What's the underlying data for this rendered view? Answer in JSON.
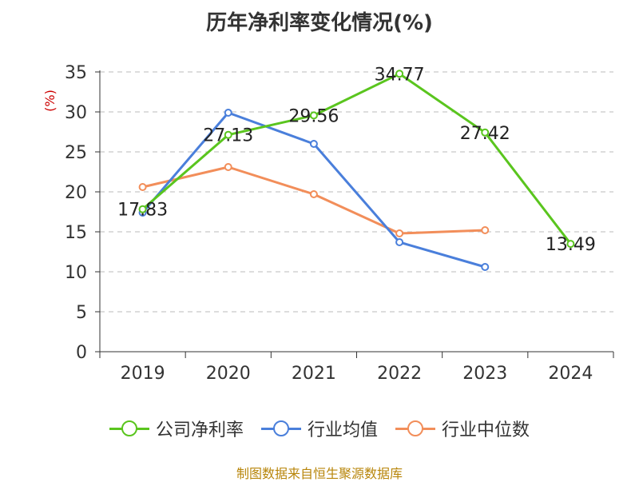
{
  "title": "历年净利率变化情况(%)",
  "source": "制图数据来自恒生聚源数据库",
  "chart_data": {
    "type": "line",
    "title": "历年净利率变化情况(%)",
    "ylabel": "(%)",
    "xlabel": "",
    "categories": [
      "2019",
      "2020",
      "2021",
      "2022",
      "2023",
      "2024"
    ],
    "ylim": [
      0,
      35
    ],
    "yticks": [
      0,
      5,
      10,
      15,
      20,
      25,
      30,
      35
    ],
    "grid": true,
    "legend_position": "bottom",
    "series": [
      {
        "name": "公司净利率",
        "color": "#5ac51e",
        "values": [
          17.83,
          27.13,
          29.56,
          34.77,
          27.42,
          13.49
        ],
        "labels": [
          "17.83",
          "27.13",
          "29.56",
          "34.77",
          "27.42",
          "13.49"
        ]
      },
      {
        "name": "行业均值",
        "color": "#4a7fdb",
        "values": [
          17.4,
          29.9,
          26.0,
          13.7,
          10.6,
          null
        ]
      },
      {
        "name": "行业中位数",
        "color": "#f28e5a",
        "values": [
          20.6,
          23.1,
          19.7,
          14.8,
          15.2,
          null
        ]
      }
    ]
  }
}
